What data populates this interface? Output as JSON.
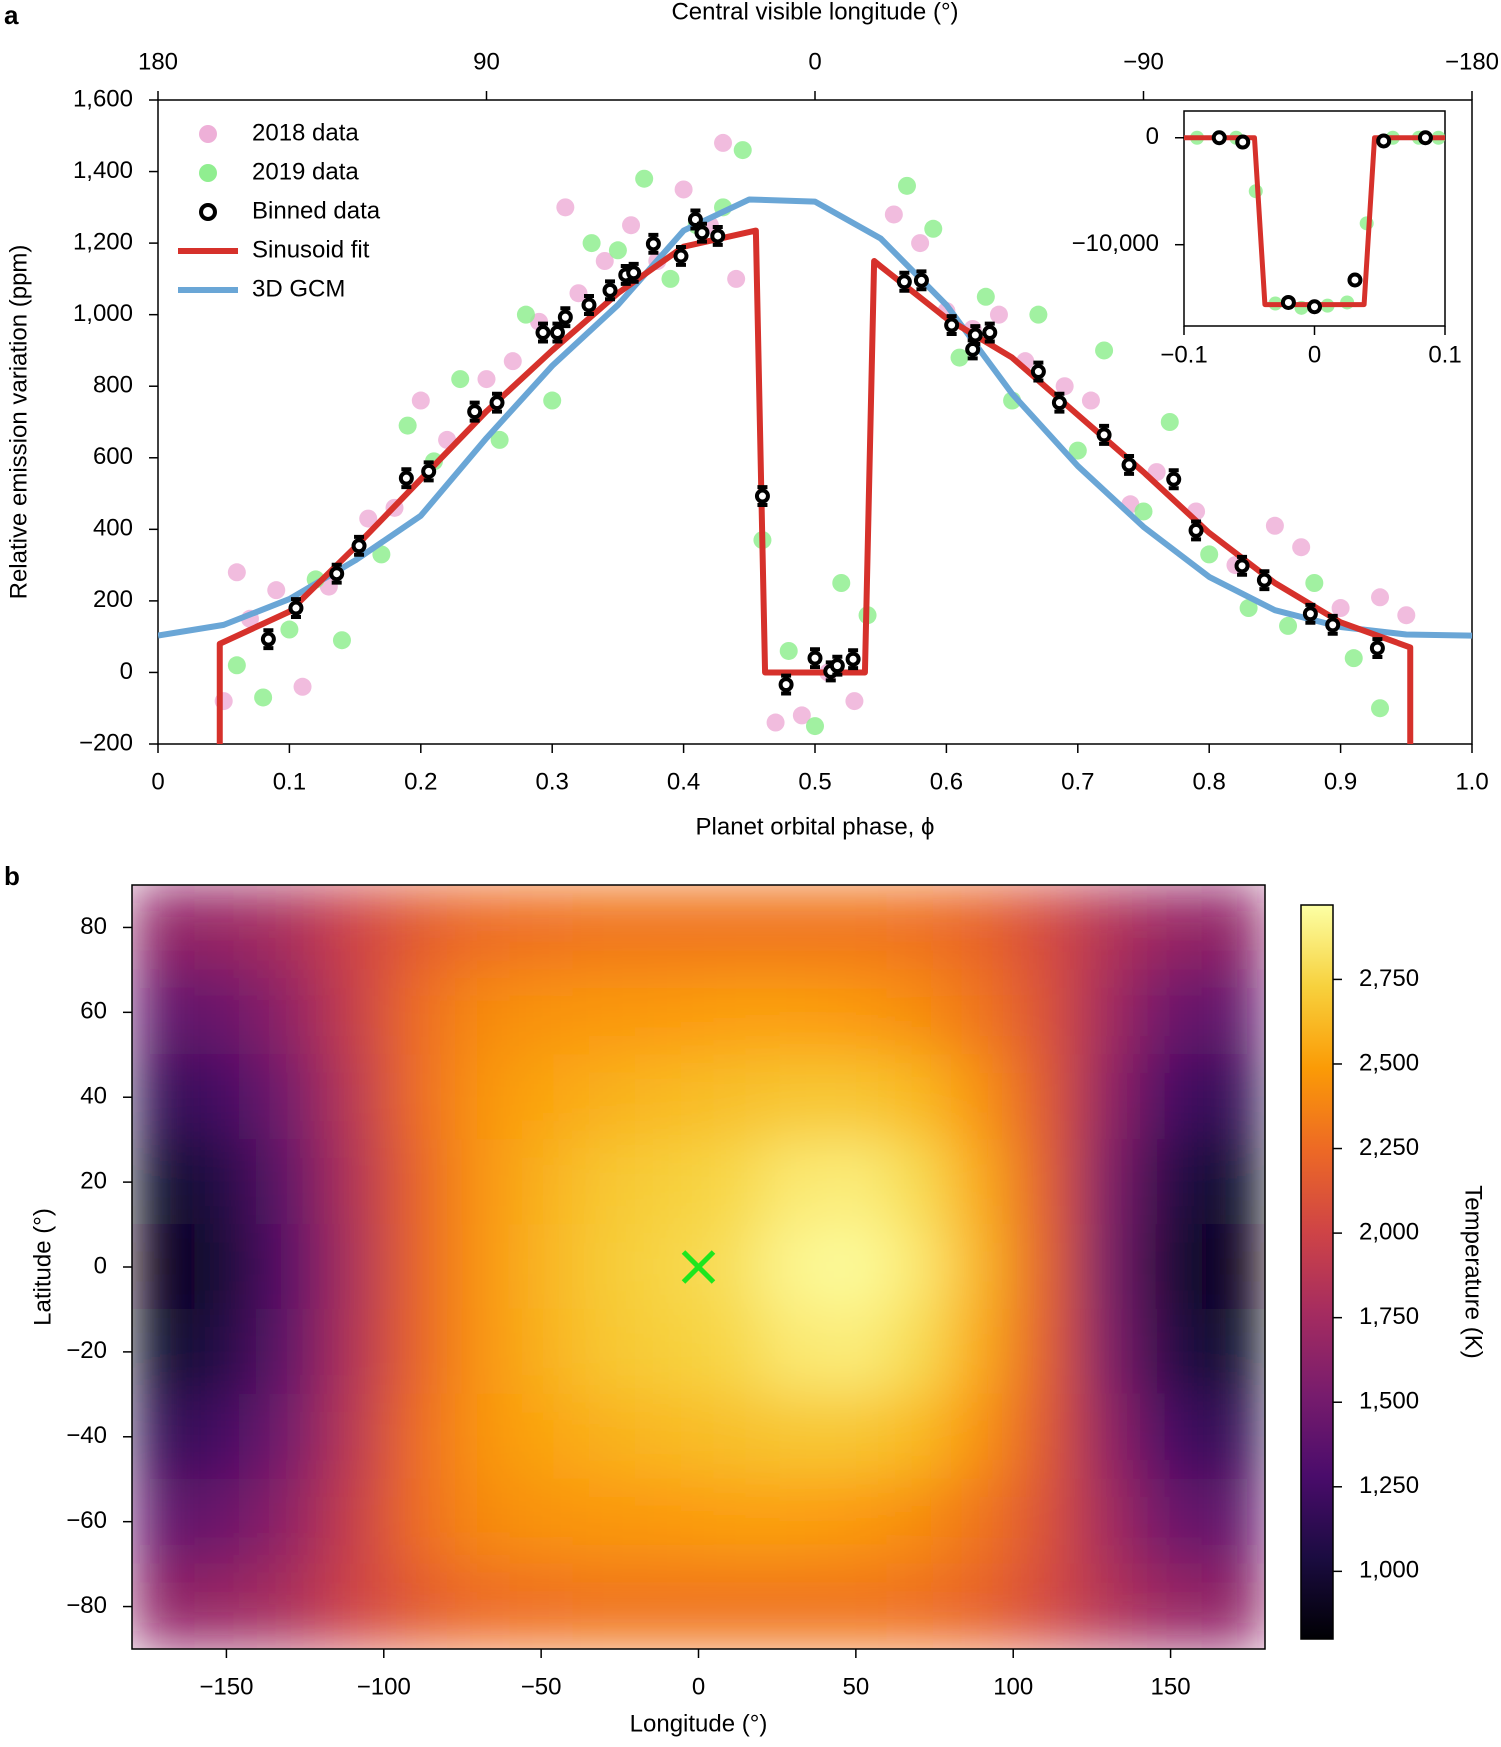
{
  "chart_data": [
    {
      "type": "combo",
      "panel": "a",
      "xlabel": "Planet orbital phase, ϕ",
      "ylabel": "Relative emission variation (ppm)",
      "x2label": "Central visible longitude (°)",
      "xlim": [
        0,
        1
      ],
      "xticks": [
        0,
        0.1,
        0.2,
        0.3,
        0.4,
        0.5,
        0.6,
        0.7,
        0.8,
        0.9,
        {
          "value": 1,
          "label": "1.0"
        }
      ],
      "ylim": [
        -200,
        1600
      ],
      "yticks": [
        {
          "value": -200,
          "label": "−200"
        },
        0,
        200,
        400,
        600,
        800,
        {
          "value": 1000,
          "label": "1,000"
        },
        {
          "value": 1200,
          "label": "1,200"
        },
        {
          "value": 1400,
          "label": "1,400"
        },
        {
          "value": 1600,
          "label": "1,600"
        }
      ],
      "x2lim": [
        180,
        -180
      ],
      "x2ticks": [
        180,
        90,
        0,
        {
          "value": -90,
          "label": "−90"
        },
        {
          "value": -180,
          "label": "−180"
        }
      ],
      "legend": "upper left",
      "series": [
        {
          "name": "2018 data",
          "kind": "points",
          "color": "#eeb0d8",
          "x": [
            0.05,
            0.06,
            0.07,
            0.09,
            0.11,
            0.13,
            0.16,
            0.18,
            0.2,
            0.22,
            0.25,
            0.27,
            0.29,
            0.31,
            0.32,
            0.34,
            0.36,
            0.38,
            0.4,
            0.42,
            0.43,
            0.44,
            0.47,
            0.49,
            0.51,
            0.53,
            0.56,
            0.58,
            0.6,
            0.62,
            0.64,
            0.66,
            0.69,
            0.71,
            0.74,
            0.76,
            0.79,
            0.82,
            0.85,
            0.87,
            0.9,
            0.93,
            0.95
          ],
          "values": [
            -80,
            280,
            150,
            230,
            -40,
            240,
            430,
            460,
            760,
            650,
            820,
            870,
            980,
            1300,
            1060,
            1150,
            1250,
            1150,
            1350,
            1250,
            1480,
            1100,
            -140,
            -120,
            0,
            -80,
            1280,
            1200,
            1010,
            960,
            1000,
            870,
            800,
            760,
            470,
            560,
            450,
            300,
            410,
            350,
            180,
            210,
            160
          ]
        },
        {
          "name": "2019 data",
          "kind": "points",
          "color": "#90ee90",
          "x": [
            0.06,
            0.08,
            0.1,
            0.12,
            0.14,
            0.17,
            0.19,
            0.21,
            0.23,
            0.26,
            0.28,
            0.3,
            0.33,
            0.35,
            0.37,
            0.39,
            0.41,
            0.43,
            0.445,
            0.46,
            0.48,
            0.5,
            0.52,
            0.54,
            0.57,
            0.59,
            0.61,
            0.63,
            0.65,
            0.67,
            0.7,
            0.72,
            0.75,
            0.77,
            0.8,
            0.83,
            0.86,
            0.88,
            0.91,
            0.93
          ],
          "values": [
            20,
            -70,
            120,
            260,
            90,
            330,
            690,
            590,
            820,
            650,
            1000,
            760,
            1200,
            1180,
            1380,
            1100,
            1250,
            1300,
            1460,
            370,
            60,
            -150,
            250,
            160,
            1360,
            1240,
            880,
            1050,
            760,
            1000,
            620,
            900,
            450,
            700,
            330,
            180,
            130,
            250,
            40,
            -100
          ]
        },
        {
          "name": "Binned data",
          "kind": "errorbar",
          "color": "#000000",
          "x": [
            0.084,
            0.105,
            0.136,
            0.153,
            0.189,
            0.206,
            0.241,
            0.258,
            0.293,
            0.304,
            0.31,
            0.328,
            0.344,
            0.356,
            0.362,
            0.377,
            0.398,
            0.409,
            0.414,
            0.426,
            0.46,
            0.478,
            0.5,
            0.512,
            0.517,
            0.529,
            0.568,
            0.581,
            0.604,
            0.62,
            0.622,
            0.633,
            0.67,
            0.686,
            0.72,
            0.739,
            0.773,
            0.79,
            0.825,
            0.842,
            0.877,
            0.894,
            0.928
          ],
          "values": [
            93,
            180,
            276,
            354,
            543,
            562,
            729,
            754,
            950,
            950,
            993,
            1027,
            1068,
            1111,
            1117,
            1198,
            1164,
            1266,
            1229,
            1220,
            493,
            -34,
            40,
            3,
            19,
            37,
            1092,
            1096,
            971,
            903,
            943,
            950,
            841,
            754,
            664,
            580,
            540,
            397,
            298,
            258,
            164,
            133,
            68
          ],
          "errors": [
            25,
            25,
            25,
            25,
            25,
            25,
            25,
            25,
            25,
            25,
            25,
            25,
            25,
            25,
            25,
            25,
            25,
            25,
            25,
            25,
            25,
            25,
            25,
            25,
            25,
            25,
            25,
            25,
            25,
            25,
            25,
            25,
            25,
            25,
            25,
            25,
            25,
            25,
            25,
            25,
            25,
            25,
            25
          ]
        },
        {
          "name": "Sinusoid fit",
          "kind": "line",
          "color": "#d6312b",
          "x": [
            0.047,
            0.047,
            0.1,
            0.15,
            0.2,
            0.25,
            0.3,
            0.35,
            0.4,
            0.455,
            0.462,
            0.538,
            0.545,
            0.55,
            0.6,
            0.65,
            0.7,
            0.75,
            0.8,
            0.85,
            0.9,
            0.953,
            0.953
          ],
          "values": [
            -200,
            80,
            170,
            350,
            540,
            730,
            900,
            1060,
            1190,
            1235,
            0,
            0,
            1150,
            1135,
            990,
            880,
            720,
            560,
            390,
            250,
            140,
            70,
            -200
          ]
        },
        {
          "name": "3D GCM",
          "kind": "line",
          "color": "#6aa6d6",
          "x": [
            0,
            0.05,
            0.1,
            0.15,
            0.2,
            0.25,
            0.3,
            0.35,
            0.4,
            0.45,
            0.5,
            0.55,
            0.6,
            0.65,
            0.7,
            0.75,
            0.8,
            0.85,
            0.9,
            0.95,
            1
          ],
          "values": [
            103,
            133,
            205,
            313,
            438,
            655,
            857,
            1027,
            1235,
            1322,
            1316,
            1213,
            1027,
            779,
            577,
            407,
            267,
            174,
            127,
            106,
            103
          ]
        }
      ]
    },
    {
      "type": "combo",
      "xlim": [
        -0.1,
        0.1
      ],
      "xticks": [
        {
          "value": -0.1,
          "label": "−0.1"
        },
        0,
        0.1
      ],
      "ylim": [
        -17600,
        2500
      ],
      "yticks": [
        {
          "value": -10000,
          "label": "−10,000"
        },
        0
      ],
      "series": [
        {
          "kind": "points",
          "color": "#90ee90",
          "x": [
            -0.09,
            -0.06,
            -0.045,
            -0.03,
            -0.01,
            0.01,
            0.025,
            0.04,
            0.06,
            0.08,
            0.095
          ],
          "values": [
            0,
            0,
            -5000,
            -15500,
            -15900,
            -15700,
            -15400,
            -8000,
            0,
            0,
            0
          ]
        },
        {
          "kind": "line",
          "color": "#d6312b",
          "x": [
            -0.1,
            -0.046,
            -0.038,
            0.038,
            0.046,
            0.1
          ],
          "values": [
            0,
            0,
            -15600,
            -15600,
            0,
            0
          ]
        },
        {
          "kind": "errorbar",
          "color": "#000000",
          "x": [
            -0.073,
            -0.055,
            -0.02,
            0,
            0.031,
            0.053,
            0.085
          ],
          "values": [
            0,
            -400,
            -15400,
            -15800,
            -13300,
            -300,
            0
          ]
        }
      ]
    },
    {
      "type": "heatmap",
      "panel": "b",
      "xlabel": "Longitude (°)",
      "ylabel": "Latitude (°)",
      "colorbar_label": "Temperature (K)",
      "xlim": [
        -180,
        180
      ],
      "xticks": [
        {
          "value": -150,
          "label": "−150"
        },
        {
          "value": -100,
          "label": "−100"
        },
        {
          "value": -50,
          "label": "−50"
        },
        0,
        50,
        100,
        150
      ],
      "ylim": [
        -90,
        90
      ],
      "yticks": [
        {
          "value": -80,
          "label": "−80"
        },
        {
          "value": -60,
          "label": "−60"
        },
        {
          "value": -40,
          "label": "−40"
        },
        {
          "value": -20,
          "label": "−20"
        },
        0,
        20,
        40,
        60,
        80
      ],
      "x": [
        -170,
        -150,
        -130,
        -110,
        -90,
        -70,
        -50,
        -30,
        -10,
        10,
        30,
        50,
        70,
        90,
        110,
        130,
        150,
        170
      ],
      "y": [
        80,
        60,
        40,
        20,
        0,
        -20,
        -40,
        -60,
        -80
      ],
      "z": [
        [
          1650,
          1700,
          1800,
          2000,
          2150,
          2250,
          2280,
          2300,
          2300,
          2300,
          2300,
          2300,
          2280,
          2200,
          2050,
          1850,
          1700,
          1650
        ],
        [
          1400,
          1450,
          1650,
          1950,
          2250,
          2400,
          2450,
          2470,
          2480,
          2500,
          2500,
          2480,
          2420,
          2300,
          2100,
          1750,
          1450,
          1400
        ],
        [
          1150,
          1250,
          1500,
          1880,
          2250,
          2450,
          2530,
          2580,
          2620,
          2650,
          2680,
          2680,
          2620,
          2450,
          2150,
          1650,
          1250,
          1150
        ],
        [
          950,
          1080,
          1400,
          1830,
          2200,
          2450,
          2580,
          2680,
          2720,
          2760,
          2850,
          2870,
          2780,
          2550,
          2180,
          1550,
          1080,
          950
        ],
        [
          870,
          1000,
          1350,
          1800,
          2200,
          2450,
          2600,
          2700,
          2750,
          2800,
          2920,
          2950,
          2850,
          2600,
          2200,
          1500,
          1000,
          870
        ],
        [
          950,
          1080,
          1400,
          1830,
          2200,
          2450,
          2580,
          2680,
          2720,
          2760,
          2850,
          2870,
          2780,
          2550,
          2180,
          1550,
          1080,
          950
        ],
        [
          1150,
          1250,
          1500,
          1880,
          2250,
          2450,
          2530,
          2580,
          2620,
          2650,
          2680,
          2680,
          2620,
          2450,
          2150,
          1650,
          1250,
          1150
        ],
        [
          1400,
          1450,
          1650,
          1950,
          2250,
          2400,
          2450,
          2470,
          2480,
          2500,
          2500,
          2480,
          2420,
          2300,
          2100,
          1750,
          1450,
          1400
        ],
        [
          1650,
          1700,
          1800,
          2000,
          2150,
          2250,
          2280,
          2300,
          2300,
          2300,
          2300,
          2300,
          2280,
          2200,
          2050,
          1850,
          1700,
          1650
        ]
      ],
      "clim": [
        800,
        2970
      ],
      "cticks": [
        {
          "value": 1000,
          "label": "1,000"
        },
        {
          "value": 1250,
          "label": "1,250"
        },
        {
          "value": 1500,
          "label": "1,500"
        },
        {
          "value": 1750,
          "label": "1,750"
        },
        {
          "value": 2000,
          "label": "2,000"
        },
        {
          "value": 2250,
          "label": "2,250"
        },
        {
          "value": 2500,
          "label": "2,500"
        },
        {
          "value": 2750,
          "label": "2,750"
        }
      ],
      "colormap": [
        "#000004",
        "#1b0c41",
        "#4a0c6b",
        "#781c6d",
        "#a52c60",
        "#cf4446",
        "#ed6925",
        "#fb9b06",
        "#f7d13d",
        "#fcffa4"
      ],
      "markers": [
        {
          "x": 0,
          "y": 0,
          "color": "#1ee61e"
        }
      ]
    }
  ]
}
